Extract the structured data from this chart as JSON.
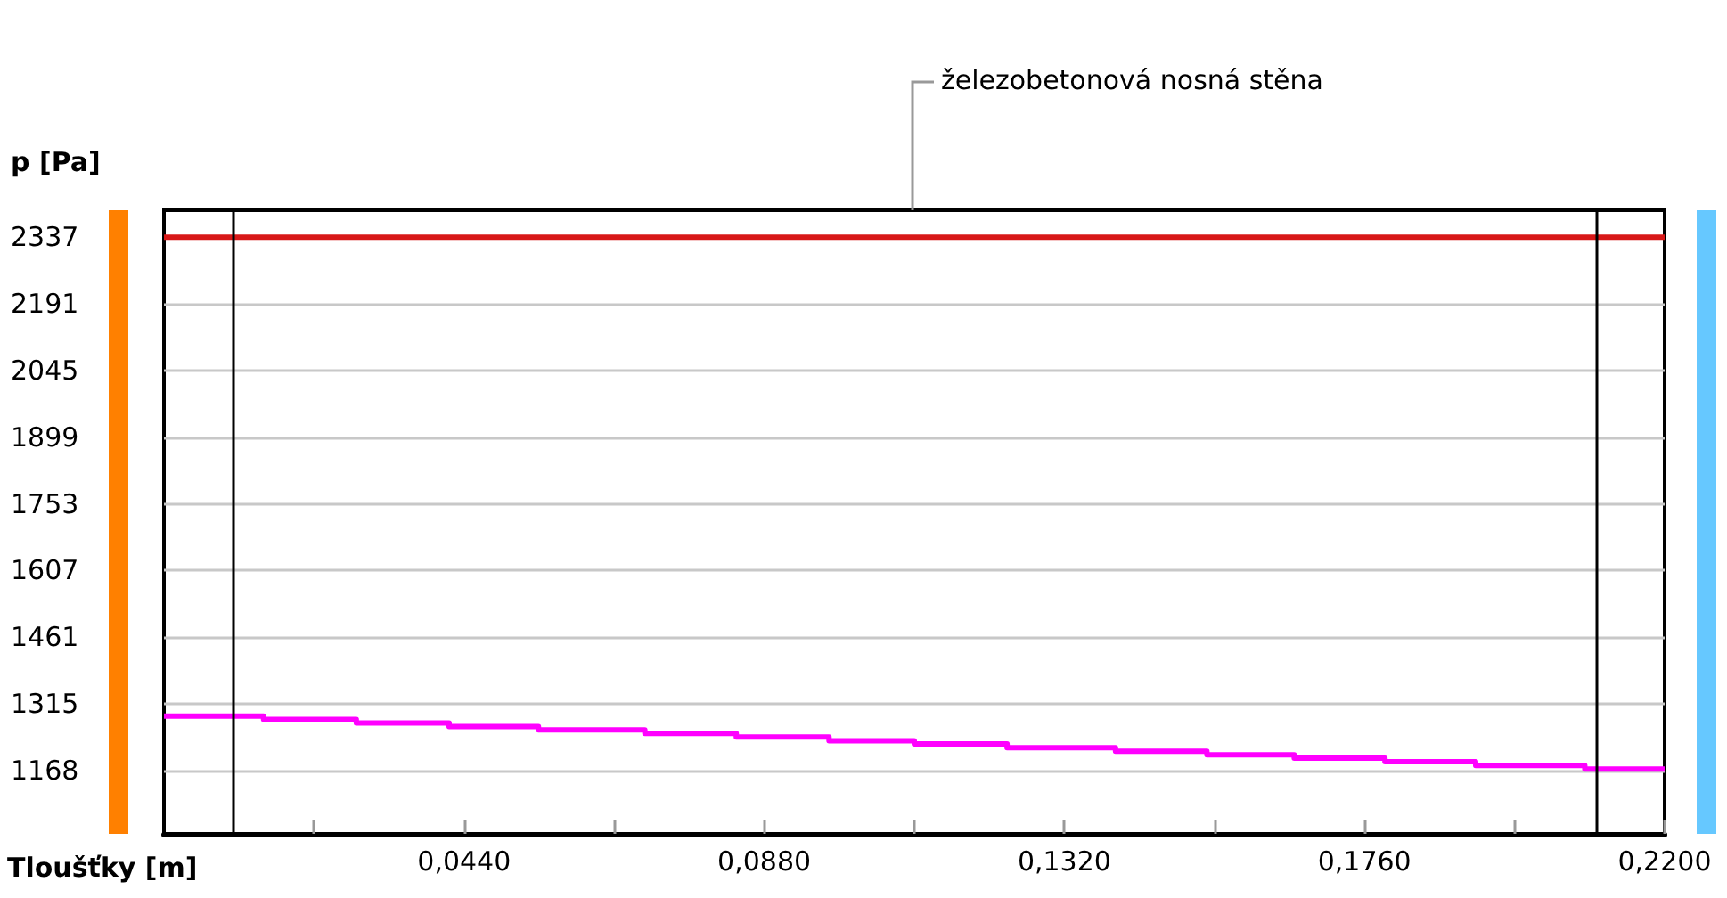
{
  "chart_data": {
    "type": "line",
    "xlabel": "Tloušťky [m]",
    "ylabel": "p [Pa]",
    "annotations": [
      "železobetonová nosná stěna"
    ],
    "xlim": [
      0,
      0.22
    ],
    "xticks": [
      {
        "value": 0.022,
        "label": null
      },
      {
        "value": 0.044,
        "label": "0,0440"
      },
      {
        "value": 0.066,
        "label": null
      },
      {
        "value": 0.088,
        "label": "0,0880"
      },
      {
        "value": 0.11,
        "label": null
      },
      {
        "value": 0.132,
        "label": "0,1320"
      },
      {
        "value": 0.154,
        "label": null
      },
      {
        "value": 0.176,
        "label": "0,1760"
      },
      {
        "value": 0.198,
        "label": null
      },
      {
        "value": 0.22,
        "label": "0,2200"
      }
    ],
    "ylim": [
      1030,
      2396
    ],
    "yticks": [
      1168,
      1315,
      1461,
      1607,
      1753,
      1899,
      2045,
      2191,
      2337
    ],
    "grid": "y",
    "marker": "none",
    "series": [
      {
        "color": "#d81818",
        "x": [
          0,
          0.22
        ],
        "values": [
          2337,
          2337
        ]
      },
      {
        "type": "step",
        "color": "#ff00ff",
        "x": [
          0,
          0.0146,
          0.0282,
          0.0418,
          0.0549,
          0.0705,
          0.0839,
          0.0975,
          0.11,
          0.1236,
          0.1395,
          0.1529,
          0.1657,
          0.179,
          0.1923,
          0.2083,
          0.22
        ],
        "values": [
          1288,
          1281,
          1273,
          1265,
          1258,
          1250,
          1242,
          1234,
          1227,
          1219,
          1211,
          1203,
          1196,
          1188,
          1180,
          1172,
          1172
        ]
      }
    ],
    "ref_lines": [
      {
        "axis": "x",
        "value": 0.0097,
        "color": "#000000"
      },
      {
        "axis": "x",
        "value": 0.2097,
        "color": "#000000"
      }
    ]
  }
}
